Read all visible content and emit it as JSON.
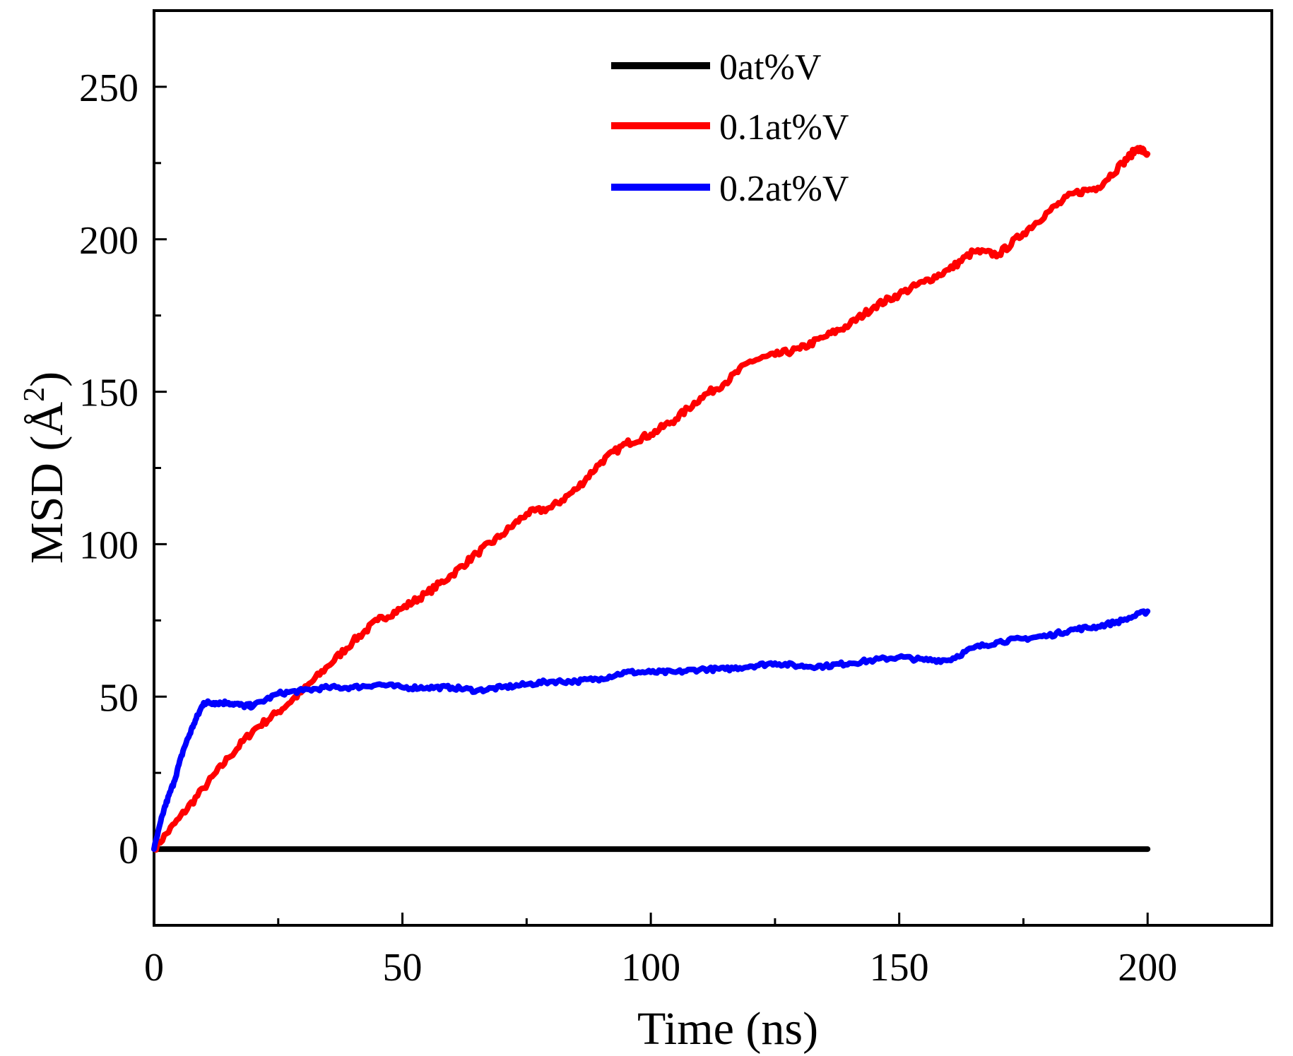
{
  "chart_data": {
    "type": "line",
    "title": "",
    "xlabel": "Time (ns)",
    "ylabel_main": "MSD (Å",
    "ylabel_sup": "2",
    "ylabel_close": ")",
    "xlim": [
      0,
      225
    ],
    "ylim": [
      -25,
      275
    ],
    "xticks": [
      0,
      50,
      100,
      150,
      200
    ],
    "yticks": [
      0,
      50,
      100,
      150,
      200,
      250
    ],
    "xtick_labels": [
      "0",
      "50",
      "100",
      "150",
      "200"
    ],
    "ytick_labels": [
      "0",
      "50",
      "100",
      "150",
      "200",
      "250"
    ],
    "legend_position": "top-center",
    "grid": false,
    "series": [
      {
        "name": "0at%V",
        "color": "#000000",
        "x": [
          0,
          200
        ],
        "values": [
          0,
          0
        ]
      },
      {
        "name": "0.1at%V",
        "color": "#ff0000",
        "x": [
          0,
          5,
          10,
          15,
          20,
          25,
          30,
          35,
          40,
          45,
          50,
          55,
          60,
          65,
          70,
          75,
          80,
          85,
          90,
          95,
          100,
          105,
          110,
          115,
          120,
          125,
          130,
          135,
          140,
          145,
          150,
          155,
          160,
          165,
          170,
          175,
          180,
          185,
          190,
          195,
          198,
          200
        ],
        "values": [
          0,
          10,
          20,
          30,
          39,
          45,
          52,
          60,
          68,
          75,
          79,
          84,
          90,
          97,
          103,
          110,
          112,
          118,
          127,
          133,
          136,
          141,
          148,
          153,
          160,
          162,
          164,
          168,
          172,
          178,
          182,
          186,
          190,
          196,
          195,
          202,
          209,
          215,
          217,
          225,
          230,
          228
        ]
      },
      {
        "name": "0.2at%V",
        "color": "#0000ff",
        "x": [
          0,
          2,
          4,
          6,
          8,
          10,
          12,
          15,
          18,
          20,
          25,
          30,
          35,
          40,
          45,
          50,
          55,
          60,
          65,
          70,
          75,
          80,
          85,
          90,
          95,
          100,
          105,
          110,
          115,
          120,
          125,
          130,
          135,
          140,
          145,
          150,
          155,
          160,
          165,
          170,
          175,
          180,
          185,
          190,
          195,
          200
        ],
        "values": [
          0,
          13,
          22,
          33,
          41,
          48,
          48,
          48,
          47,
          47,
          51,
          52,
          53,
          53,
          54,
          53,
          53,
          53,
          52,
          53,
          54,
          55,
          55,
          56,
          58,
          58,
          58,
          59,
          59,
          60,
          61,
          60,
          60,
          61,
          62,
          63,
          62,
          62,
          66,
          68,
          69,
          70,
          72,
          73,
          75,
          78
        ]
      }
    ]
  }
}
